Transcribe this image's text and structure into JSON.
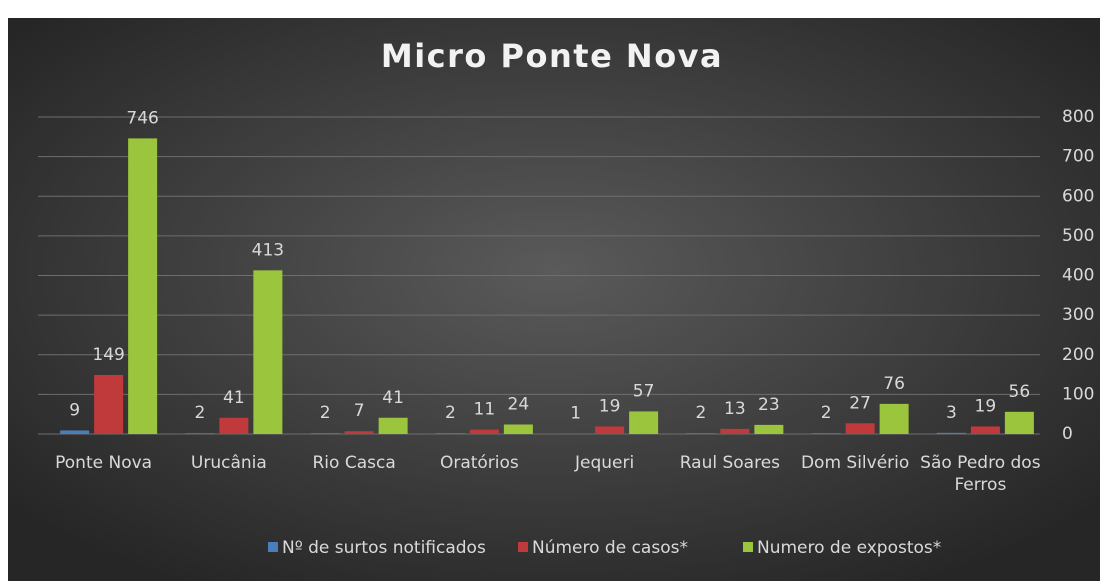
{
  "chart_data": {
    "type": "bar",
    "title": "Micro Ponte Nova",
    "categories": [
      "Ponte Nova",
      "Urucânia",
      "Rio Casca",
      "Oratórios",
      "Jequeri",
      "Raul Soares",
      "Dom Silvério",
      "São Pedro dos Ferros"
    ],
    "series": [
      {
        "name": "Nº de surtos notificados",
        "color": "#4a7ebb",
        "values": [
          9,
          2,
          2,
          2,
          1,
          2,
          2,
          3
        ]
      },
      {
        "name": "Número de casos*",
        "color": "#c0393b",
        "values": [
          149,
          41,
          7,
          11,
          19,
          13,
          27,
          19
        ]
      },
      {
        "name": "Numero de expostos*",
        "color": "#9bc53d",
        "values": [
          746,
          413,
          41,
          24,
          57,
          23,
          76,
          56
        ]
      }
    ],
    "ylim": [
      0,
      800
    ],
    "yticks": [
      0,
      100,
      200,
      300,
      400,
      500,
      600,
      700,
      800
    ],
    "grid": true,
    "legend": "bottom"
  }
}
